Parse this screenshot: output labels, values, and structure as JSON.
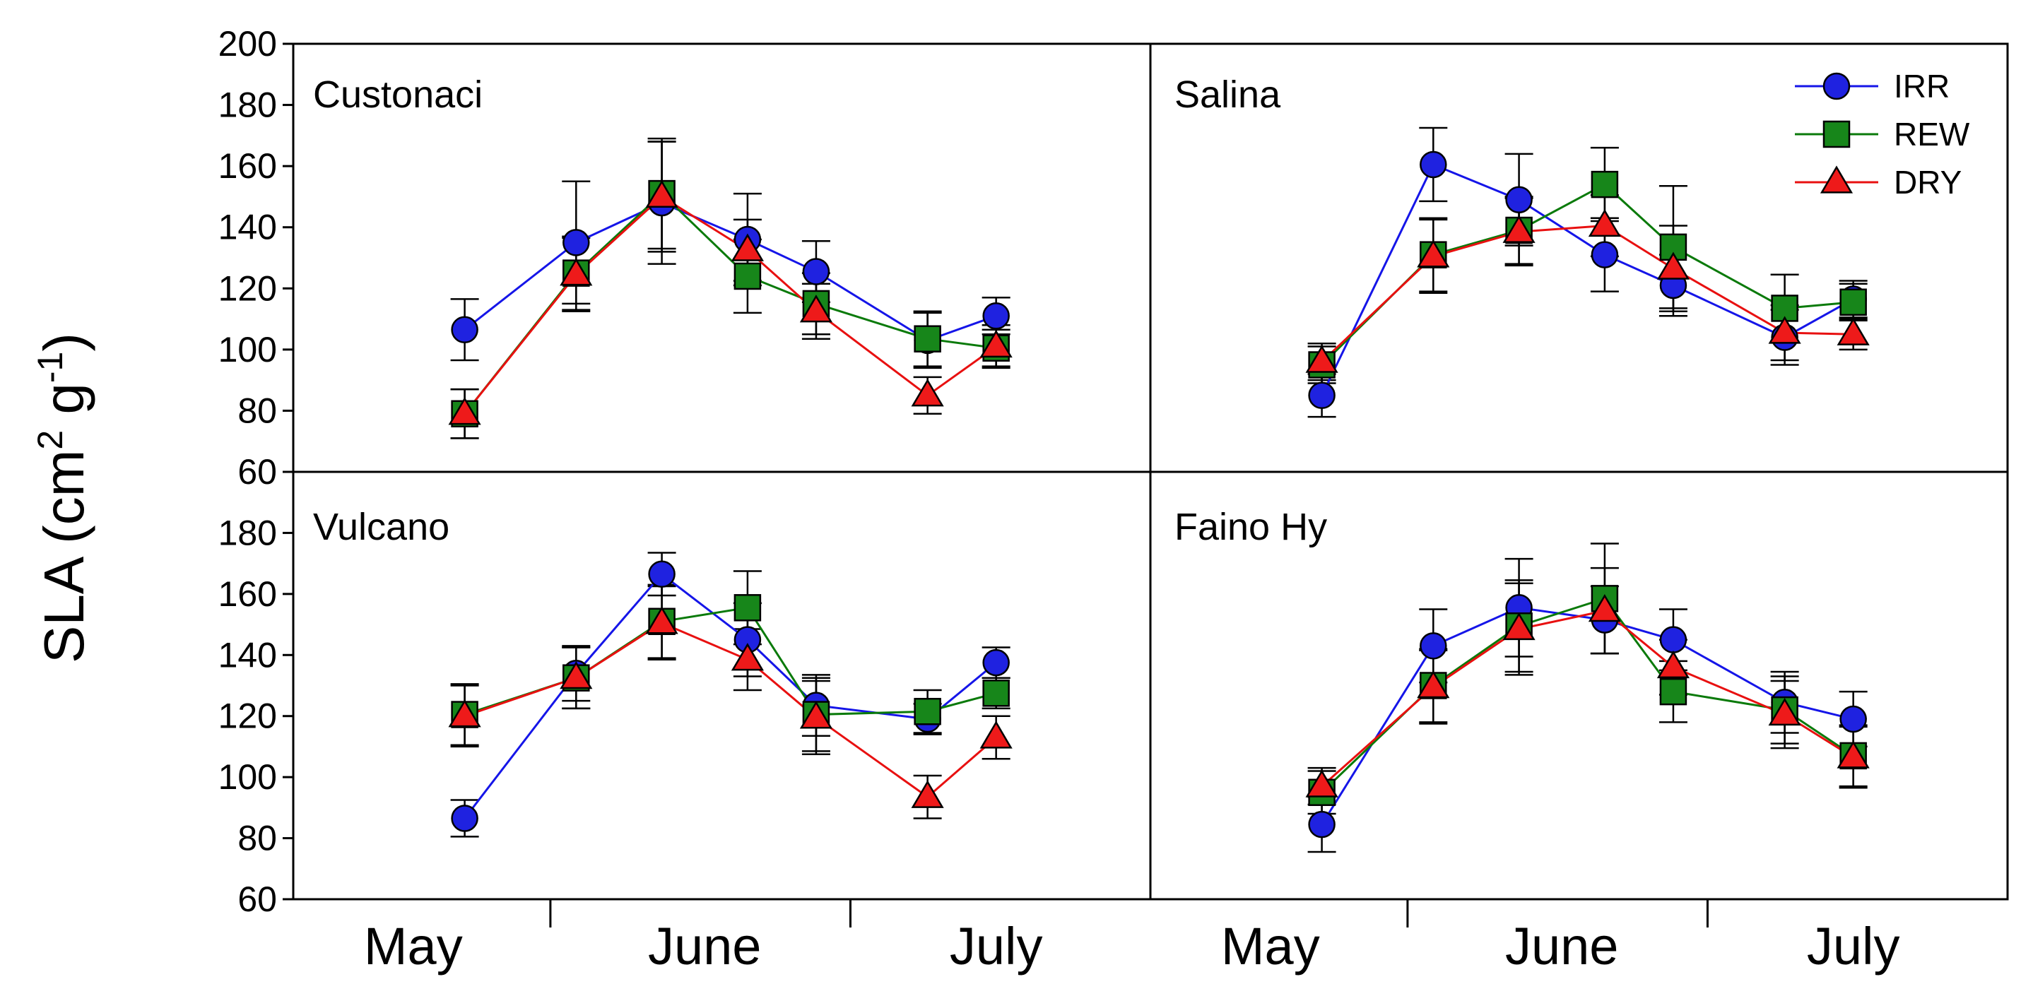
{
  "chart_data": {
    "type": "line",
    "ylabel_main": "SLA (cm",
    "ylabel_sup1": "2",
    "ylabel_mid": " g",
    "ylabel_sup2": "-1",
    "ylabel_end": ")",
    "xlabel": "",
    "ylim": [
      60,
      200
    ],
    "xlim": [
      0,
      100
    ],
    "yticks_top": [
      "60",
      "80",
      "100",
      "120",
      "140",
      "160",
      "180",
      "200"
    ],
    "yticks_bottom": [
      "60",
      "80",
      "100",
      "120",
      "140",
      "160",
      "180"
    ],
    "month_labels": [
      "May",
      "June",
      "July"
    ],
    "month_positions": [
      14,
      48,
      82
    ],
    "month_dividers": [
      30,
      65
    ],
    "series_styles": [
      {
        "name": "IRR",
        "color": "#1515e8",
        "fill": "#1f22e0",
        "marker": "circle"
      },
      {
        "name": "REW",
        "color": "#0a7a0a",
        "fill": "#17861a",
        "marker": "square"
      },
      {
        "name": "DRY",
        "color": "#e81010",
        "fill": "#ee1a1a",
        "marker": "triangle"
      }
    ],
    "legend": [
      "IRR",
      "REW",
      "DRY"
    ],
    "legend_location": "top-right",
    "panels": [
      {
        "title": "Custonaci",
        "x": [
          20,
          33,
          43,
          53,
          61,
          74,
          82
        ],
        "series": [
          {
            "name": "IRR",
            "values": [
              106.5,
              135,
              148,
              136,
              125.5,
              103,
              111
            ],
            "err": [
              10,
              20,
              20,
              15,
              10,
              9,
              6
            ]
          },
          {
            "name": "REW",
            "values": [
              79,
              125,
              151,
              124,
              115,
              103.5,
              100.5
            ],
            "err": [
              8,
              12,
              18,
              12,
              10,
              9,
              6
            ]
          },
          {
            "name": "DRY",
            "values": [
              79,
              124.5,
              150,
              132.5,
              112.5,
              85,
              101
            ],
            "err": [
              8,
              12,
              18,
              10,
              9,
              6,
              7
            ]
          }
        ]
      },
      {
        "title": "Salina",
        "x": [
          20,
          33,
          43,
          53,
          61,
          74,
          82
        ],
        "series": [
          {
            "name": "IRR",
            "values": [
              85,
              160.5,
              149,
              131,
              121,
              104,
              116.5
            ],
            "err": [
              7,
              12,
              15,
              12,
              10,
              9,
              6
            ]
          },
          {
            "name": "REW",
            "values": [
              95,
              131,
              139,
              154,
              133.5,
              113.5,
              115.5
            ],
            "err": [
              6,
              12,
              11,
              12,
              20,
              11,
              6
            ]
          },
          {
            "name": "DRY",
            "values": [
              96,
              130.5,
              138.5,
              140.5,
              126.5,
              105.5,
              105
            ],
            "err": [
              6,
              12,
              11,
              10,
              14,
              9,
              5
            ]
          }
        ]
      },
      {
        "title": "Vulcano",
        "x": [
          20,
          33,
          43,
          53,
          61,
          74,
          82
        ],
        "series": [
          {
            "name": "IRR",
            "values": [
              86.5,
              134,
              166.5,
              145,
              123.5,
              119,
              137.5
            ],
            "err": [
              6,
              9,
              7,
              12,
              10,
              5,
              5
            ]
          },
          {
            "name": "REW",
            "values": [
              120.5,
              132.5,
              151,
              155.5,
              120.5,
              121.5,
              127.5
            ],
            "err": [
              10,
              10,
              12,
              12,
              12,
              7,
              5
            ]
          },
          {
            "name": "DRY",
            "values": [
              120,
              132.5,
              150.5,
              138.5,
              119.5,
              93.5,
              113
            ],
            "err": [
              10,
              10,
              12,
              10,
              12,
              7,
              7
            ]
          }
        ]
      },
      {
        "title": "Faino Hy",
        "x": [
          20,
          33,
          43,
          53,
          61,
          74,
          82
        ],
        "series": [
          {
            "name": "IRR",
            "values": [
              84.5,
              143,
              155.5,
              151.5,
              145,
              124.5,
              119
            ],
            "err": [
              9,
              12,
              16,
              11,
              10,
              10,
              9
            ]
          },
          {
            "name": "REW",
            "values": [
              95,
              130,
              149.5,
              158.5,
              128,
              122,
              107
            ],
            "err": [
              7,
              12,
              15,
              18,
              10,
              11,
              10
            ]
          },
          {
            "name": "DRY",
            "values": [
              97,
              129.5,
              148.5,
              154.5,
              136,
              120.5,
              106.5
            ],
            "err": [
              6,
              12,
              15,
              14,
              9,
              11,
              10
            ]
          }
        ]
      }
    ]
  }
}
